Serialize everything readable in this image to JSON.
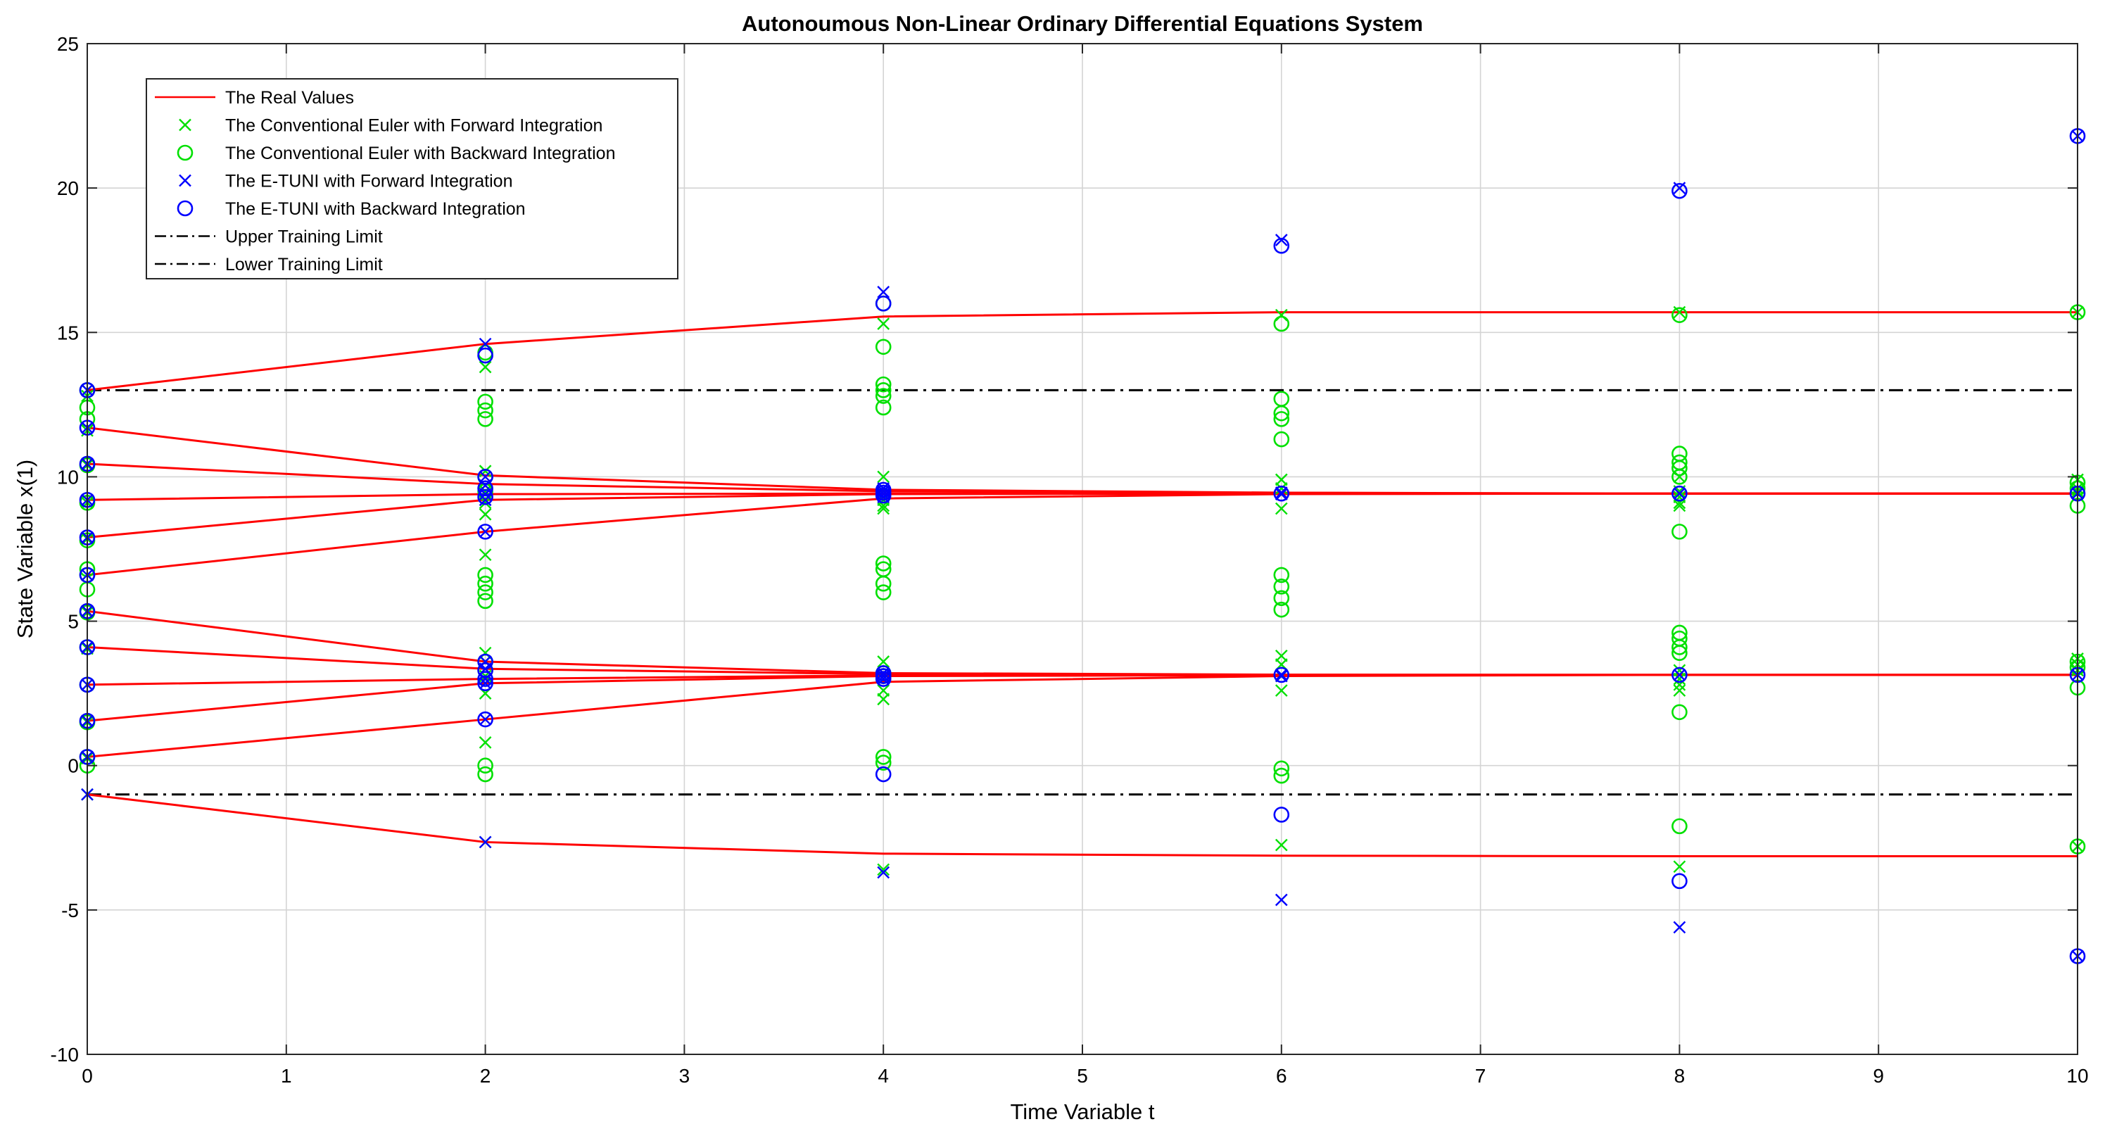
{
  "chart_data": {
    "type": "line",
    "title": "Autonoumous Non-Linear Ordinary Differential Equations System",
    "xlabel": "Time Variable t",
    "ylabel": "State Variable x(1)",
    "xlim": [
      0,
      10
    ],
    "ylim": [
      -10,
      25
    ],
    "xticks": [
      0,
      1,
      2,
      3,
      4,
      5,
      6,
      7,
      8,
      9,
      10
    ],
    "yticks": [
      -10,
      -5,
      0,
      5,
      10,
      15,
      20,
      25
    ],
    "grid": true,
    "legend_position": "top-left",
    "colors": {
      "real": "#ff0000",
      "euler": "#00e000",
      "etuni": "#0000ff",
      "limit": "#000000"
    },
    "legend": [
      {
        "label": "The Real Values",
        "style": "line",
        "color": "#ff0000"
      },
      {
        "label": "The Conventional Euler with Forward Integration",
        "style": "x",
        "color": "#00e000"
      },
      {
        "label": "The Conventional Euler with Backward Integration",
        "style": "o",
        "color": "#00e000"
      },
      {
        "label": "The E-TUNI with Forward Integration",
        "style": "x",
        "color": "#0000ff"
      },
      {
        "label": "The E-TUNI with Backward Integration",
        "style": "o",
        "color": "#0000ff"
      },
      {
        "label": "Upper Training Limit",
        "style": "dashdot",
        "color": "#000000"
      },
      {
        "label": "Lower Training Limit",
        "style": "dashdot",
        "color": "#000000"
      }
    ],
    "x": [
      0,
      2,
      4,
      6,
      8,
      10
    ],
    "real_values": [
      [
        13.0,
        14.6,
        15.55,
        15.7,
        15.7,
        15.7
      ],
      [
        11.7,
        10.05,
        9.55,
        9.45,
        9.42,
        9.42
      ],
      [
        10.45,
        9.75,
        9.5,
        9.43,
        9.42,
        9.42
      ],
      [
        9.2,
        9.4,
        9.42,
        9.42,
        9.42,
        9.42
      ],
      [
        7.9,
        9.2,
        9.4,
        9.42,
        9.42,
        9.42
      ],
      [
        6.6,
        8.1,
        9.25,
        9.4,
        9.42,
        9.42
      ],
      [
        5.35,
        3.6,
        3.2,
        3.15,
        3.14,
        3.14
      ],
      [
        4.1,
        3.35,
        3.17,
        3.14,
        3.14,
        3.14
      ],
      [
        2.8,
        3.0,
        3.12,
        3.14,
        3.14,
        3.14
      ],
      [
        1.55,
        2.85,
        3.1,
        3.13,
        3.14,
        3.14
      ],
      [
        0.3,
        1.6,
        2.9,
        3.1,
        3.14,
        3.14
      ],
      [
        -1.0,
        -2.65,
        -3.05,
        -3.12,
        -3.14,
        -3.14
      ]
    ],
    "euler_forward": [
      [
        0,
        13.0
      ],
      [
        0,
        12.8
      ],
      [
        0,
        11.6
      ],
      [
        0,
        10.4
      ],
      [
        0,
        9.1
      ],
      [
        0,
        7.85
      ],
      [
        0,
        6.6
      ],
      [
        0,
        5.3
      ],
      [
        0,
        4.05
      ],
      [
        0,
        2.8
      ],
      [
        0,
        1.5
      ],
      [
        0,
        0.25
      ],
      [
        0,
        -1.0
      ],
      [
        2,
        13.8
      ],
      [
        2,
        10.2
      ],
      [
        2,
        9.5
      ],
      [
        2,
        9.1
      ],
      [
        2,
        8.7
      ],
      [
        2,
        7.3
      ],
      [
        2,
        3.9
      ],
      [
        2,
        3.6
      ],
      [
        2,
        3.1
      ],
      [
        2,
        2.5
      ],
      [
        2,
        0.8
      ],
      [
        2,
        -2.65
      ],
      [
        4,
        15.3
      ],
      [
        4,
        10.0
      ],
      [
        4,
        9.5
      ],
      [
        4,
        9.2
      ],
      [
        4,
        9.0
      ],
      [
        4,
        8.9
      ],
      [
        4,
        3.6
      ],
      [
        4,
        3.2
      ],
      [
        4,
        3.0
      ],
      [
        4,
        2.6
      ],
      [
        4,
        2.3
      ],
      [
        4,
        -3.6
      ],
      [
        6,
        15.6
      ],
      [
        6,
        9.9
      ],
      [
        6,
        9.6
      ],
      [
        6,
        9.4
      ],
      [
        6,
        8.9
      ],
      [
        6,
        3.8
      ],
      [
        6,
        3.5
      ],
      [
        6,
        3.1
      ],
      [
        6,
        2.6
      ],
      [
        6,
        -2.75
      ],
      [
        8,
        15.7
      ],
      [
        8,
        10.0
      ],
      [
        8,
        9.5
      ],
      [
        8,
        9.3
      ],
      [
        8,
        9.1
      ],
      [
        8,
        9.0
      ],
      [
        8,
        3.3
      ],
      [
        8,
        3.0
      ],
      [
        8,
        2.8
      ],
      [
        8,
        2.6
      ],
      [
        8,
        -3.5
      ],
      [
        10,
        15.7
      ],
      [
        10,
        9.9
      ],
      [
        10,
        9.6
      ],
      [
        10,
        9.5
      ],
      [
        10,
        3.7
      ],
      [
        10,
        3.5
      ],
      [
        10,
        3.3
      ],
      [
        10,
        -2.8
      ]
    ],
    "euler_backward": [
      [
        0,
        13.0
      ],
      [
        0,
        12.4
      ],
      [
        0,
        12.0
      ],
      [
        0,
        10.4
      ],
      [
        0,
        9.1
      ],
      [
        0,
        7.8
      ],
      [
        0,
        6.8
      ],
      [
        0,
        6.6
      ],
      [
        0,
        6.1
      ],
      [
        0,
        5.3
      ],
      [
        0,
        4.1
      ],
      [
        0,
        2.8
      ],
      [
        0,
        1.5
      ],
      [
        0,
        0.0
      ],
      [
        0,
        0.3
      ],
      [
        2,
        14.3
      ],
      [
        2,
        12.6
      ],
      [
        2,
        12.3
      ],
      [
        2,
        12.0
      ],
      [
        2,
        10.0
      ],
      [
        2,
        9.5
      ],
      [
        2,
        6.6
      ],
      [
        2,
        6.3
      ],
      [
        2,
        6.0
      ],
      [
        2,
        5.7
      ],
      [
        2,
        3.6
      ],
      [
        2,
        3.3
      ],
      [
        2,
        0.0
      ],
      [
        2,
        -0.3
      ],
      [
        4,
        16.0
      ],
      [
        4,
        14.5
      ],
      [
        4,
        13.2
      ],
      [
        4,
        13.0
      ],
      [
        4,
        12.8
      ],
      [
        4,
        12.4
      ],
      [
        4,
        7.0
      ],
      [
        4,
        6.8
      ],
      [
        4,
        6.3
      ],
      [
        4,
        6.0
      ],
      [
        4,
        3.2
      ],
      [
        4,
        3.1
      ],
      [
        4,
        0.3
      ],
      [
        4,
        0.1
      ],
      [
        6,
        15.3
      ],
      [
        6,
        12.7
      ],
      [
        6,
        12.2
      ],
      [
        6,
        12.0
      ],
      [
        6,
        11.3
      ],
      [
        6,
        6.6
      ],
      [
        6,
        6.2
      ],
      [
        6,
        5.8
      ],
      [
        6,
        5.4
      ],
      [
        6,
        -0.1
      ],
      [
        6,
        -0.35
      ],
      [
        8,
        15.6
      ],
      [
        8,
        10.8
      ],
      [
        8,
        10.5
      ],
      [
        8,
        10.3
      ],
      [
        8,
        10.0
      ],
      [
        8,
        8.1
      ],
      [
        8,
        4.6
      ],
      [
        8,
        4.4
      ],
      [
        8,
        4.1
      ],
      [
        8,
        3.9
      ],
      [
        8,
        1.85
      ],
      [
        8,
        -2.1
      ],
      [
        10,
        15.7
      ],
      [
        10,
        9.8
      ],
      [
        10,
        9.6
      ],
      [
        10,
        9.0
      ],
      [
        10,
        3.6
      ],
      [
        10,
        3.4
      ],
      [
        10,
        2.7
      ],
      [
        10,
        -2.8
      ]
    ],
    "etuni_forward": [
      [
        0,
        13.0
      ],
      [
        0,
        11.7
      ],
      [
        0,
        10.45
      ],
      [
        0,
        9.2
      ],
      [
        0,
        7.9
      ],
      [
        0,
        6.6
      ],
      [
        0,
        5.35
      ],
      [
        0,
        4.1
      ],
      [
        0,
        2.8
      ],
      [
        0,
        1.55
      ],
      [
        0,
        0.3
      ],
      [
        0,
        -1.0
      ],
      [
        2,
        14.6
      ],
      [
        2,
        10.0
      ],
      [
        2,
        9.7
      ],
      [
        2,
        9.4
      ],
      [
        2,
        9.2
      ],
      [
        2,
        8.1
      ],
      [
        2,
        3.6
      ],
      [
        2,
        3.35
      ],
      [
        2,
        3.0
      ],
      [
        2,
        2.85
      ],
      [
        2,
        1.6
      ],
      [
        2,
        -2.65
      ],
      [
        4,
        16.4
      ],
      [
        4,
        9.6
      ],
      [
        4,
        9.5
      ],
      [
        4,
        9.4
      ],
      [
        4,
        9.3
      ],
      [
        4,
        3.2
      ],
      [
        4,
        3.1
      ],
      [
        4,
        3.0
      ],
      [
        4,
        -3.7
      ],
      [
        6,
        18.2
      ],
      [
        6,
        9.45
      ],
      [
        6,
        9.4
      ],
      [
        6,
        3.15
      ],
      [
        6,
        3.1
      ],
      [
        6,
        -4.65
      ],
      [
        8,
        20.0
      ],
      [
        8,
        9.42
      ],
      [
        8,
        3.14
      ],
      [
        8,
        -5.6
      ],
      [
        10,
        21.8
      ],
      [
        10,
        9.42
      ],
      [
        10,
        3.14
      ],
      [
        10,
        -6.6
      ]
    ],
    "etuni_backward": [
      [
        0,
        13.0
      ],
      [
        0,
        11.7
      ],
      [
        0,
        10.45
      ],
      [
        0,
        9.2
      ],
      [
        0,
        7.9
      ],
      [
        0,
        6.6
      ],
      [
        0,
        5.35
      ],
      [
        0,
        4.1
      ],
      [
        0,
        2.8
      ],
      [
        0,
        1.55
      ],
      [
        0,
        0.3
      ],
      [
        2,
        14.2
      ],
      [
        2,
        10.0
      ],
      [
        2,
        9.6
      ],
      [
        2,
        9.3
      ],
      [
        2,
        8.1
      ],
      [
        2,
        3.6
      ],
      [
        2,
        3.3
      ],
      [
        2,
        3.0
      ],
      [
        2,
        2.85
      ],
      [
        2,
        1.6
      ],
      [
        4,
        16.0
      ],
      [
        4,
        9.55
      ],
      [
        4,
        9.45
      ],
      [
        4,
        9.35
      ],
      [
        4,
        3.2
      ],
      [
        4,
        3.1
      ],
      [
        4,
        3.0
      ],
      [
        4,
        -0.3
      ],
      [
        6,
        18.0
      ],
      [
        6,
        9.42
      ],
      [
        6,
        3.14
      ],
      [
        6,
        -1.7
      ],
      [
        8,
        19.9
      ],
      [
        8,
        9.42
      ],
      [
        8,
        3.14
      ],
      [
        8,
        -4.0
      ],
      [
        10,
        21.8
      ],
      [
        10,
        9.42
      ],
      [
        10,
        3.14
      ],
      [
        10,
        -6.6
      ]
    ],
    "upper_training_limit": 13,
    "lower_training_limit": -1
  }
}
